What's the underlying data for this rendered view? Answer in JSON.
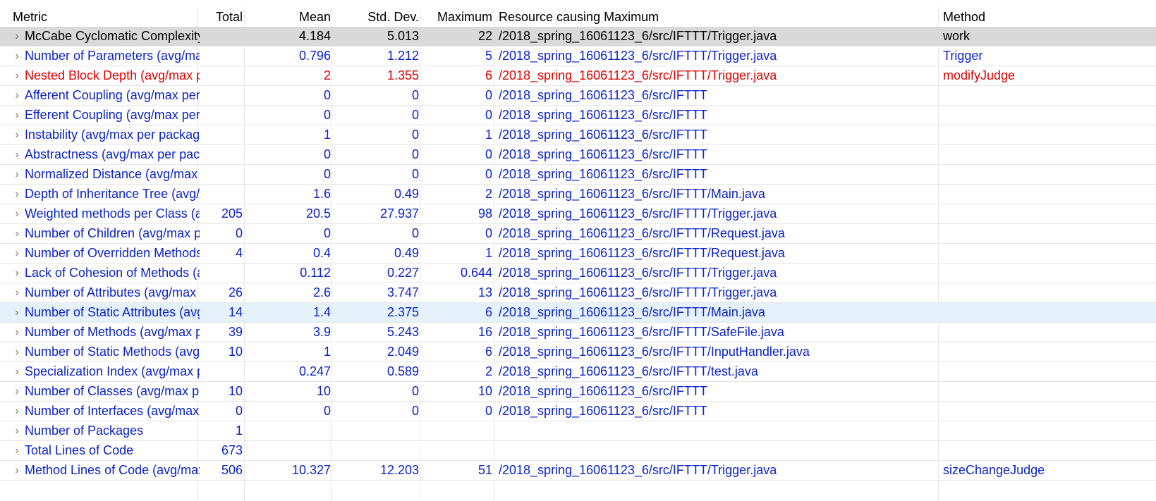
{
  "columns": [
    "Metric",
    "Total",
    "Mean",
    "Std. Dev.",
    "Maximum",
    "Resource causing Maximum",
    "Method"
  ],
  "rows": [
    {
      "metric": "McCabe Cyclomatic Complexity (avg/max per method)",
      "total": "",
      "mean": "4.184",
      "std": "5.013",
      "max": "22",
      "resource": "/2018_spring_16061123_6/src/IFTTT/Trigger.java",
      "method": "work",
      "style": "black",
      "state": "selected"
    },
    {
      "metric": "Number of Parameters (avg/max per method)",
      "total": "",
      "mean": "0.796",
      "std": "1.212",
      "max": "5",
      "resource": "/2018_spring_16061123_6/src/IFTTT/Trigger.java",
      "method": "Trigger",
      "style": "blue",
      "state": ""
    },
    {
      "metric": "Nested Block Depth (avg/max per method)",
      "total": "",
      "mean": "2",
      "std": "1.355",
      "max": "6",
      "resource": "/2018_spring_16061123_6/src/IFTTT/Trigger.java",
      "method": "modifyJudge",
      "style": "red",
      "state": ""
    },
    {
      "metric": "Afferent Coupling (avg/max per packageFragment)",
      "total": "",
      "mean": "0",
      "std": "0",
      "max": "0",
      "resource": "/2018_spring_16061123_6/src/IFTTT",
      "method": "",
      "style": "blue",
      "state": ""
    },
    {
      "metric": "Efferent Coupling (avg/max per packageFragment)",
      "total": "",
      "mean": "0",
      "std": "0",
      "max": "0",
      "resource": "/2018_spring_16061123_6/src/IFTTT",
      "method": "",
      "style": "blue",
      "state": ""
    },
    {
      "metric": "Instability (avg/max per packageFragment)",
      "total": "",
      "mean": "1",
      "std": "0",
      "max": "1",
      "resource": "/2018_spring_16061123_6/src/IFTTT",
      "method": "",
      "style": "blue",
      "state": ""
    },
    {
      "metric": "Abstractness (avg/max per packageFragment)",
      "total": "",
      "mean": "0",
      "std": "0",
      "max": "0",
      "resource": "/2018_spring_16061123_6/src/IFTTT",
      "method": "",
      "style": "blue",
      "state": ""
    },
    {
      "metric": "Normalized Distance (avg/max per packageFragment)",
      "total": "",
      "mean": "0",
      "std": "0",
      "max": "0",
      "resource": "/2018_spring_16061123_6/src/IFTTT",
      "method": "",
      "style": "blue",
      "state": ""
    },
    {
      "metric": "Depth of Inheritance Tree (avg/max per type)",
      "total": "",
      "mean": "1.6",
      "std": "0.49",
      "max": "2",
      "resource": "/2018_spring_16061123_6/src/IFTTT/Main.java",
      "method": "",
      "style": "blue",
      "state": ""
    },
    {
      "metric": "Weighted methods per Class (avg/max per type)",
      "total": "205",
      "mean": "20.5",
      "std": "27.937",
      "max": "98",
      "resource": "/2018_spring_16061123_6/src/IFTTT/Trigger.java",
      "method": "",
      "style": "blue",
      "state": ""
    },
    {
      "metric": "Number of Children (avg/max per type)",
      "total": "0",
      "mean": "0",
      "std": "0",
      "max": "0",
      "resource": "/2018_spring_16061123_6/src/IFTTT/Request.java",
      "method": "",
      "style": "blue",
      "state": ""
    },
    {
      "metric": "Number of Overridden Methods (avg/max per type)",
      "total": "4",
      "mean": "0.4",
      "std": "0.49",
      "max": "1",
      "resource": "/2018_spring_16061123_6/src/IFTTT/Request.java",
      "method": "",
      "style": "blue",
      "state": ""
    },
    {
      "metric": "Lack of Cohesion of Methods (avg/max per type)",
      "total": "",
      "mean": "0.112",
      "std": "0.227",
      "max": "0.644",
      "resource": "/2018_spring_16061123_6/src/IFTTT/Trigger.java",
      "method": "",
      "style": "blue",
      "state": ""
    },
    {
      "metric": "Number of Attributes (avg/max per type)",
      "total": "26",
      "mean": "2.6",
      "std": "3.747",
      "max": "13",
      "resource": "/2018_spring_16061123_6/src/IFTTT/Trigger.java",
      "method": "",
      "style": "blue",
      "state": ""
    },
    {
      "metric": "Number of Static Attributes (avg/max per type)",
      "total": "14",
      "mean": "1.4",
      "std": "2.375",
      "max": "6",
      "resource": "/2018_spring_16061123_6/src/IFTTT/Main.java",
      "method": "",
      "style": "blue",
      "state": "hovered"
    },
    {
      "metric": "Number of Methods (avg/max per type)",
      "total": "39",
      "mean": "3.9",
      "std": "5.243",
      "max": "16",
      "resource": "/2018_spring_16061123_6/src/IFTTT/SafeFile.java",
      "method": "",
      "style": "blue",
      "state": ""
    },
    {
      "metric": "Number of Static Methods (avg/max per type)",
      "total": "10",
      "mean": "1",
      "std": "2.049",
      "max": "6",
      "resource": "/2018_spring_16061123_6/src/IFTTT/InputHandler.java",
      "method": "",
      "style": "blue",
      "state": ""
    },
    {
      "metric": "Specialization Index (avg/max per type)",
      "total": "",
      "mean": "0.247",
      "std": "0.589",
      "max": "2",
      "resource": "/2018_spring_16061123_6/src/IFTTT/test.java",
      "method": "",
      "style": "blue",
      "state": ""
    },
    {
      "metric": "Number of Classes (avg/max per packageFragment)",
      "total": "10",
      "mean": "10",
      "std": "0",
      "max": "10",
      "resource": "/2018_spring_16061123_6/src/IFTTT",
      "method": "",
      "style": "blue",
      "state": ""
    },
    {
      "metric": "Number of Interfaces (avg/max per packageFragment)",
      "total": "0",
      "mean": "0",
      "std": "0",
      "max": "0",
      "resource": "/2018_spring_16061123_6/src/IFTTT",
      "method": "",
      "style": "blue",
      "state": ""
    },
    {
      "metric": "Number of Packages",
      "total": "1",
      "mean": "",
      "std": "",
      "max": "",
      "resource": "",
      "method": "",
      "style": "blue",
      "state": ""
    },
    {
      "metric": "Total Lines of Code",
      "total": "673",
      "mean": "",
      "std": "",
      "max": "",
      "resource": "",
      "method": "",
      "style": "blue",
      "state": ""
    },
    {
      "metric": "Method Lines of Code (avg/max per method)",
      "total": "506",
      "mean": "10.327",
      "std": "12.203",
      "max": "51",
      "resource": "/2018_spring_16061123_6/src/IFTTT/Trigger.java",
      "method": "sizeChangeJudge",
      "style": "blue",
      "state": ""
    }
  ],
  "icons": {
    "expand": "chevron-right-icon"
  },
  "colors": {
    "metric_link": "#0b22c6",
    "warning": "#e00000",
    "selection": "#d9d9d9",
    "hover": "#e5f1fb"
  }
}
